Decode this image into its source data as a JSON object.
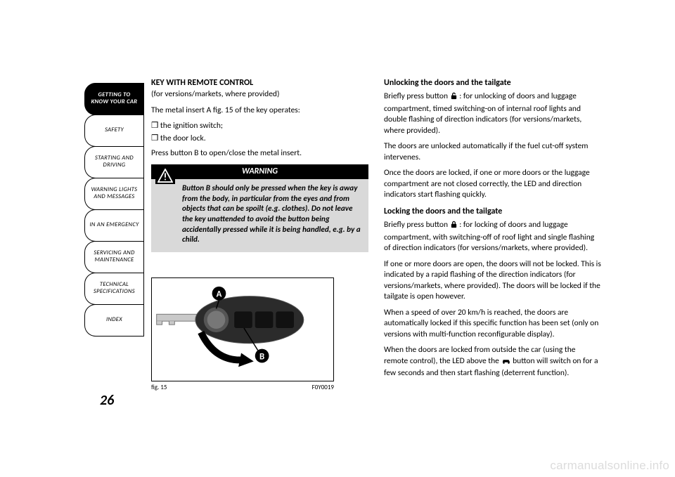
{
  "sidebar": {
    "tabs": [
      {
        "label": "GETTING TO\nKNOW YOUR CAR",
        "active": true
      },
      {
        "label": "SAFETY",
        "active": false
      },
      {
        "label": "STARTING AND\nDRIVING",
        "active": false
      },
      {
        "label": "WARNING LIGHTS\nAND MESSAGES",
        "active": false
      },
      {
        "label": "IN AN EMERGENCY",
        "active": false
      },
      {
        "label": "SERVICING AND\nMAINTENANCE",
        "active": false
      },
      {
        "label": "TECHNICAL\nSPECIFICATIONS",
        "active": false
      },
      {
        "label": "INDEX",
        "active": false
      }
    ]
  },
  "page_number": "26",
  "left_col": {
    "heading": "KEY WITH REMOTE CONTROL",
    "subheading": "(for versions/markets, where provided)",
    "intro": "The metal insert A fig. 15 of the key operates:",
    "bullets": [
      "the ignition switch;",
      "the door lock."
    ],
    "press": "Press button B to open/close the metal insert.",
    "warning_title": "WARNING",
    "warning_body": "Button B should only be pressed when the key is away from the body, in particular from the eyes and from objects that can be spoilt (e.g. clothes). Do not leave the key unattended to avoid the button being accidentally pressed while it is being handled, e.g. by a child.",
    "fig_label": "fig. 15",
    "fig_code": "F0Y0019",
    "fig_marker_a": "A",
    "fig_marker_b": "B"
  },
  "right_col": {
    "h_unlock": "Unlocking the doors and the tailgate",
    "p_unlock1_a": "Briefly press button ",
    "p_unlock1_b": " : for unlocking of doors and luggage compartment, timed switching-on of internal roof lights and double flashing of direction indicators (for versions/markets, where provided).",
    "p_unlock2": "The doors are unlocked automatically if the fuel cut-off system intervenes.",
    "p_unlock3": "Once the doors are locked, if one or more doors or the luggage compartment are not closed correctly, the LED and direction indicators start flashing quickly.",
    "h_lock": "Locking the doors and the tailgate",
    "p_lock1_a": "Briefly press button ",
    "p_lock1_b": " : for locking of doors and luggage compartment, with switching-off of roof light and single flashing of direction indicators (for versions/markets, where provided).",
    "p_lock2": "If one or more doors are open, the doors will not be locked. This is indicated by a rapid flashing of the direction indicators (for versions/markets, where provided). The doors will be locked if the tailgate is open however.",
    "p_lock3": "When a speed of over 20 km/h is reached, the doors are automatically locked if this specific function has been set (only on versions with multi-function reconfigurable display).",
    "p_lock4_a": "When the doors are locked from outside the car (using the remote control), the LED above the ",
    "p_lock4_b": " button will switch on for a few seconds and then start flashing (deterrent function)."
  },
  "watermark": "carmanualsonline.info",
  "colors": {
    "tab_bg_active": "#000000",
    "tab_fg_active": "#ffffff",
    "warning_bg": "#d9d9d9",
    "warning_header_bg": "#000000",
    "watermark_color": "#dcdcdc"
  }
}
